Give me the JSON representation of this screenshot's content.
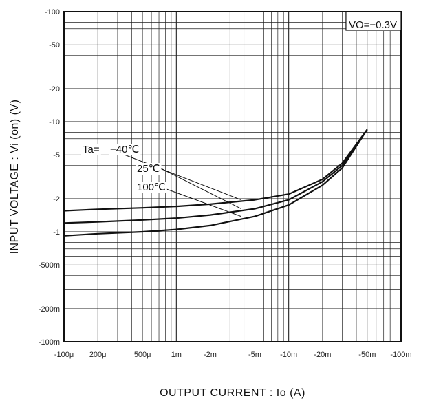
{
  "chart_data": {
    "type": "line",
    "x_scale": "log",
    "y_scale": "log",
    "xlabel": "OUTPUT CURRENT : Io (A)",
    "ylabel": "INPUT VOLTAGE : Vi (on) (V)",
    "xlim": [
      0.0001,
      0.1
    ],
    "ylim": [
      -100,
      -0.1
    ],
    "grid": true,
    "x_ticks": [
      {
        "value": 0.0001,
        "label": "-100μ"
      },
      {
        "value": 0.0002,
        "label": "200μ"
      },
      {
        "value": 0.0005,
        "label": "500μ"
      },
      {
        "value": 0.001,
        "label": "1m"
      },
      {
        "value": 0.002,
        "label": "-2m"
      },
      {
        "value": 0.005,
        "label": "-5m"
      },
      {
        "value": 0.01,
        "label": "-10m"
      },
      {
        "value": 0.02,
        "label": "-20m"
      },
      {
        "value": 0.05,
        "label": "-50m"
      },
      {
        "value": 0.1,
        "label": "-100m"
      }
    ],
    "y_ticks": [
      {
        "value": -100,
        "label": "-100"
      },
      {
        "value": -50,
        "label": "-50"
      },
      {
        "value": -20,
        "label": "-20"
      },
      {
        "value": -10,
        "label": "-10"
      },
      {
        "value": -5,
        "label": "-5"
      },
      {
        "value": -2,
        "label": "-2"
      },
      {
        "value": -1,
        "label": "-1"
      },
      {
        "value": -0.5,
        "label": "-500m"
      },
      {
        "value": -0.2,
        "label": "-200m"
      },
      {
        "value": -0.1,
        "label": "-100m"
      }
    ],
    "condition": "VO=−0.3V",
    "annotations": {
      "prefix": "Ta=",
      "labels": [
        "−40℃",
        "25℃",
        "100℃"
      ]
    },
    "series": [
      {
        "name": "−40℃",
        "x": [
          0.0001,
          0.0002,
          0.0005,
          0.001,
          0.002,
          0.005,
          0.01,
          0.02,
          0.03,
          0.05
        ],
        "y": [
          -1.55,
          -1.6,
          -1.65,
          -1.7,
          -1.78,
          -1.95,
          -2.2,
          -3.0,
          -4.2,
          -8.5
        ]
      },
      {
        "name": "25℃",
        "x": [
          0.0001,
          0.0002,
          0.0005,
          0.001,
          0.002,
          0.005,
          0.01,
          0.02,
          0.03,
          0.05
        ],
        "y": [
          -1.2,
          -1.23,
          -1.28,
          -1.33,
          -1.42,
          -1.62,
          -1.95,
          -2.85,
          -4.0,
          -8.5
        ]
      },
      {
        "name": "100℃",
        "x": [
          0.0001,
          0.0002,
          0.0005,
          0.001,
          0.002,
          0.005,
          0.01,
          0.02,
          0.03,
          0.05
        ],
        "y": [
          -0.92,
          -0.96,
          -1.0,
          -1.05,
          -1.14,
          -1.38,
          -1.75,
          -2.65,
          -3.8,
          -8.5
        ]
      }
    ]
  }
}
